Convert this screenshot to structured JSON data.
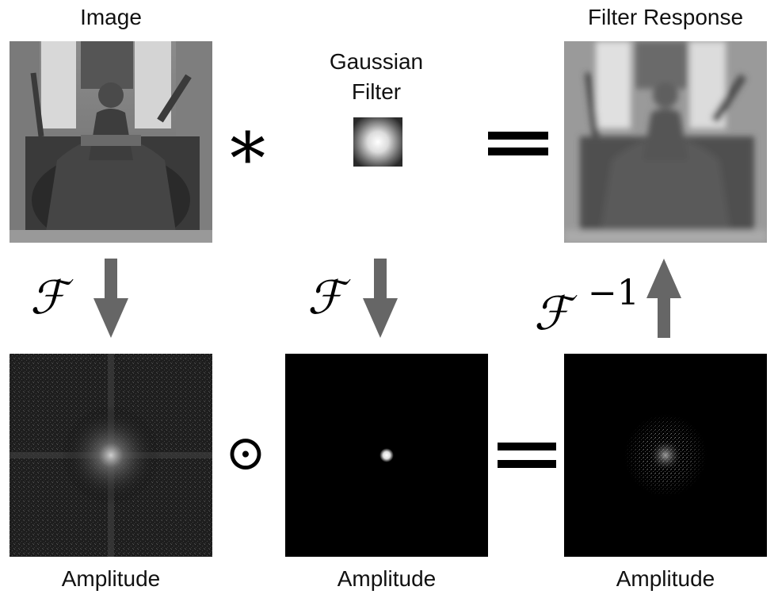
{
  "top": {
    "image_label": "Image",
    "filter_label_line1": "Gaussian",
    "filter_label_line2": "Filter",
    "response_label": "Filter Response"
  },
  "operators": {
    "convolve": "∗",
    "equals_top": "=",
    "hadamard": "⊙",
    "equals_bottom": "="
  },
  "transforms": {
    "forward": "ℱ",
    "inverse_base": "ℱ",
    "inverse_exponent": "−1"
  },
  "bottom": {
    "amp1": "Amplitude",
    "amp2": "Amplitude",
    "amp3": "Amplitude"
  },
  "colors": {
    "arrow": "#666666",
    "panel_dark": "#000000"
  }
}
